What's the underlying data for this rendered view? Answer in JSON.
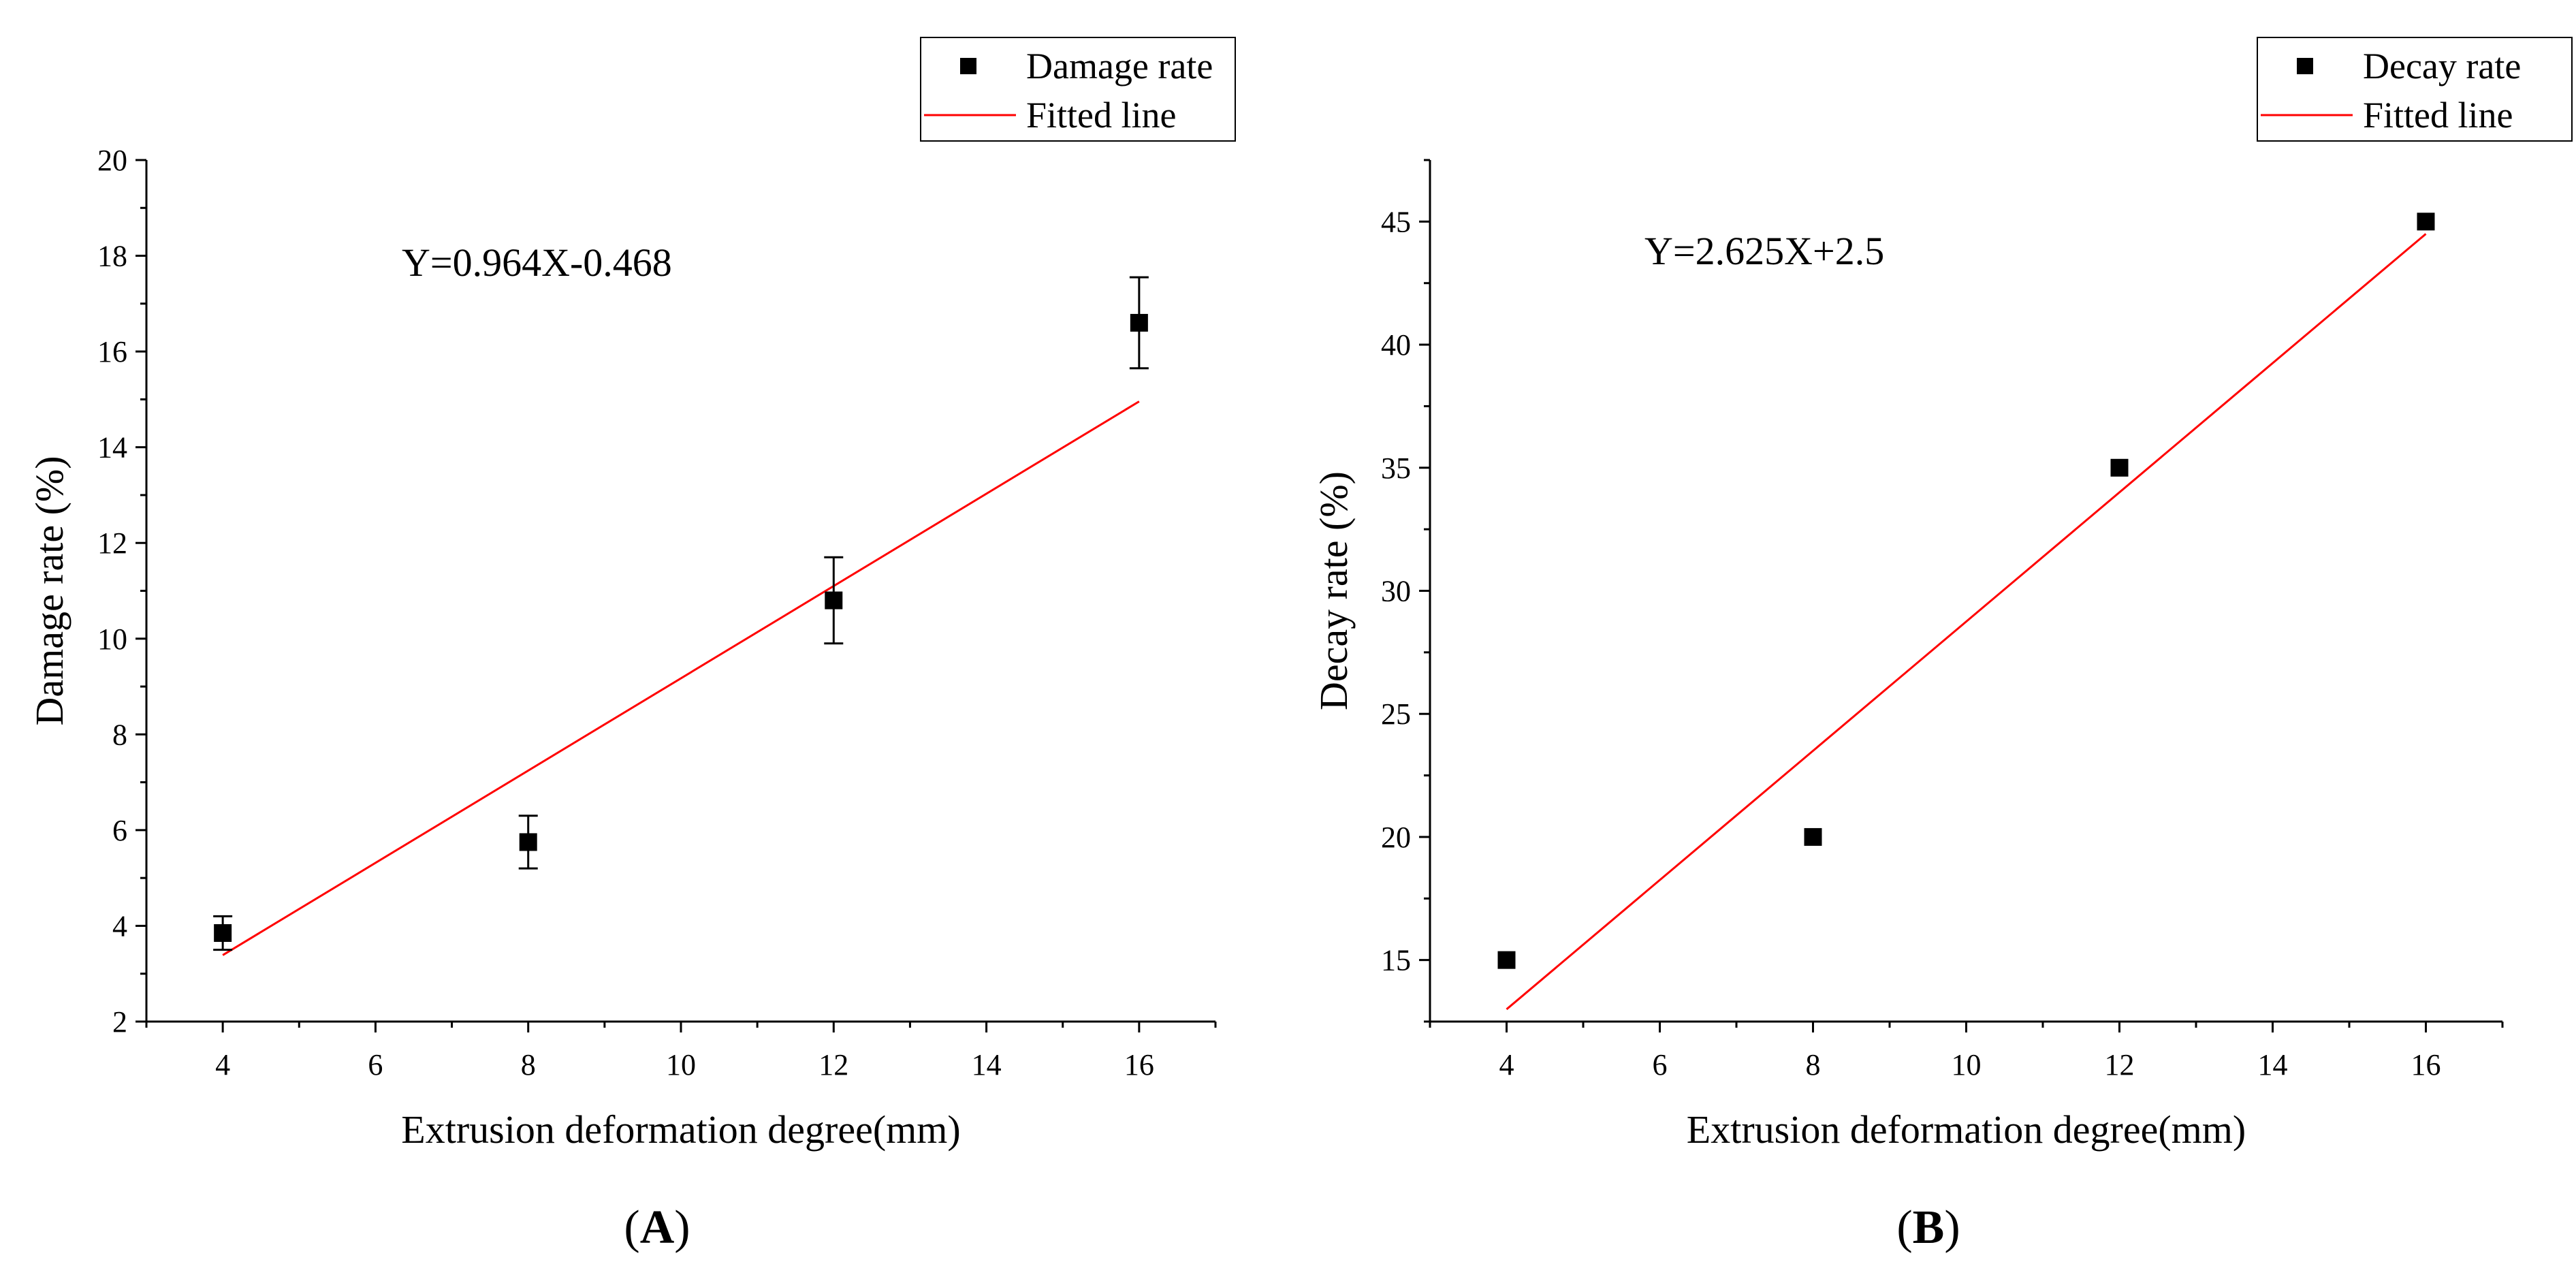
{
  "chart_data": [
    {
      "type": "scatter",
      "panel_label": "A",
      "xlabel": "Extrusion deformation degree(mm)",
      "ylabel": "Damage rate (%)",
      "xlim": [
        3,
        17
      ],
      "ylim": [
        2,
        20
      ],
      "xticks": [
        4,
        6,
        8,
        10,
        12,
        14,
        16
      ],
      "yticks": [
        2,
        4,
        6,
        8,
        10,
        12,
        14,
        16,
        18,
        20
      ],
      "series": [
        {
          "name": "Damage rate",
          "x": [
            4,
            8,
            12,
            16
          ],
          "y": [
            3.85,
            5.75,
            10.8,
            16.6
          ],
          "error": [
            0.35,
            0.55,
            0.9,
            0.95
          ],
          "color": "#000000"
        }
      ],
      "fit": {
        "name": "Fitted line",
        "slope": 0.964,
        "intercept": -0.468,
        "x_range": [
          4,
          16
        ],
        "color": "#ff0000"
      },
      "equation": "Y=0.964X-0.468",
      "legend": [
        "Damage rate",
        "Fitted line"
      ]
    },
    {
      "type": "scatter",
      "panel_label": "B",
      "xlabel": "Extrusion deformation degree(mm)",
      "ylabel": "Decay rate (%)",
      "xlim": [
        3,
        17
      ],
      "ylim": [
        12.5,
        47.5
      ],
      "xticks": [
        4,
        6,
        8,
        10,
        12,
        14,
        16
      ],
      "yticks": [
        15,
        20,
        25,
        30,
        35,
        40,
        45
      ],
      "series": [
        {
          "name": "Decay rate",
          "x": [
            4,
            8,
            12,
            16
          ],
          "y": [
            15,
            20,
            35,
            45
          ],
          "color": "#000000"
        }
      ],
      "fit": {
        "name": "Fitted line",
        "slope": 2.625,
        "intercept": 2.5,
        "x_range": [
          4,
          16
        ],
        "color": "#ff0000"
      },
      "equation": "Y=2.625X+2.5",
      "legend": [
        "Decay rate",
        "Fitted line"
      ]
    }
  ]
}
